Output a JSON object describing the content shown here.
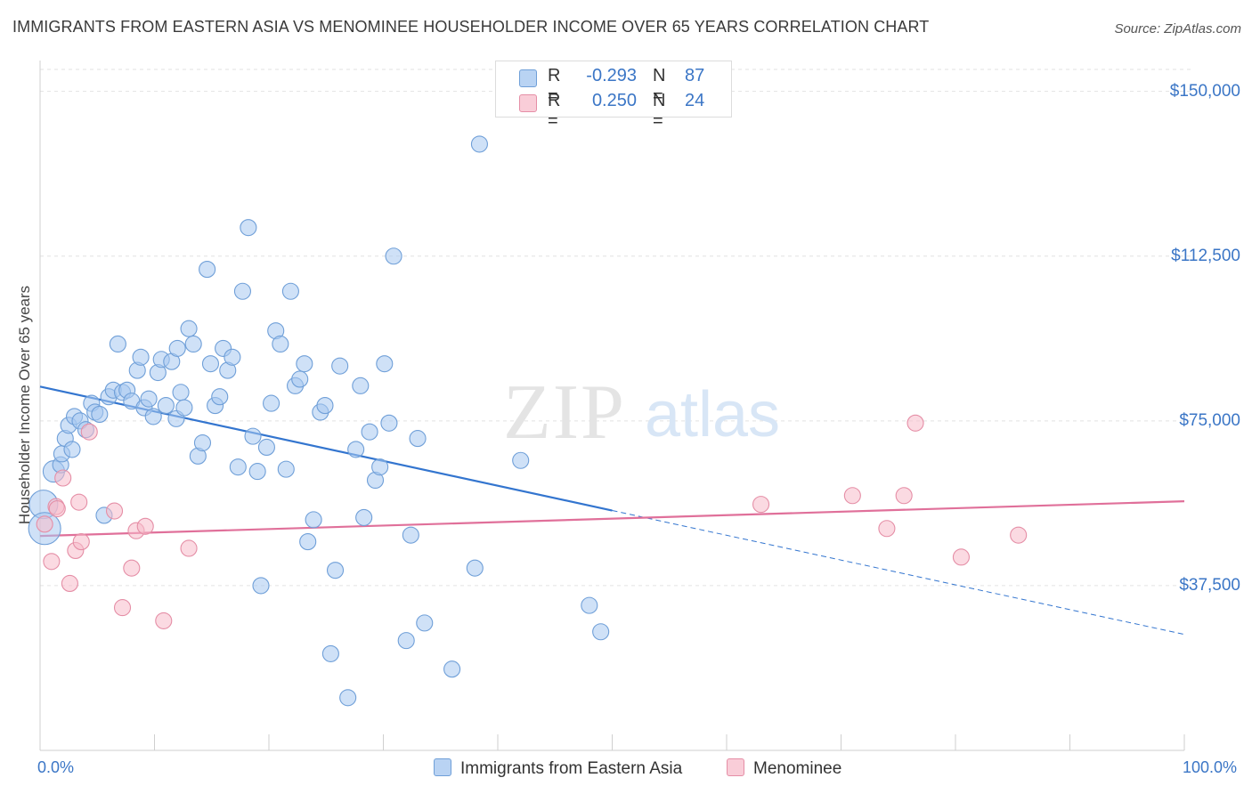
{
  "title": "IMMIGRANTS FROM EASTERN ASIA VS MENOMINEE HOUSEHOLDER INCOME OVER 65 YEARS CORRELATION CHART",
  "source": "Source: ZipAtlas.com",
  "watermark": {
    "zip": "ZIP",
    "atlas": "atlas"
  },
  "legend": {
    "series1": {
      "r_label": "R =",
      "r_value": "-0.293",
      "n_label": "N =",
      "n_value": "87"
    },
    "series2": {
      "r_label": "R =",
      "r_value": "0.250",
      "n_label": "N =",
      "n_value": "24"
    }
  },
  "colors": {
    "blue_fill": "#a8c8f0",
    "blue_stroke": "#6f9fd8",
    "blue_line": "#3375cf",
    "pink_fill": "#f7bccb",
    "pink_stroke": "#e58ea6",
    "pink_line": "#e0709a",
    "tick_text": "#3b76c6",
    "grid": "#e2e2e2"
  },
  "chart_data": {
    "type": "scatter",
    "ylabel": "Householder Income Over 65 years",
    "xlim": [
      0,
      100
    ],
    "ylim": [
      0,
      155000
    ],
    "x_tick_labels": [
      "0.0%",
      "100.0%"
    ],
    "y_ticks": [
      {
        "value": 150000,
        "label": "$150,000"
      },
      {
        "value": 112500,
        "label": "$112,500"
      },
      {
        "value": 75000,
        "label": "$75,000"
      },
      {
        "value": 37500,
        "label": "$37,500"
      }
    ],
    "grid": true,
    "series": [
      {
        "name": "Immigrants from Eastern Asia",
        "color": "blue",
        "trend": {
          "x": [
            0,
            50
          ],
          "y": [
            82800,
            54600
          ],
          "dashed_to": [
            100,
            26400
          ]
        },
        "points": [
          [
            0.3,
            56000,
            16
          ],
          [
            0.4,
            50500,
            18
          ],
          [
            1.2,
            63500,
            12
          ],
          [
            1.8,
            65000,
            9
          ],
          [
            1.9,
            67500,
            9
          ],
          [
            2.2,
            71000,
            9
          ],
          [
            2.5,
            74000,
            9
          ],
          [
            2.8,
            68500,
            9
          ],
          [
            3.0,
            76000,
            9
          ],
          [
            3.5,
            75000,
            9
          ],
          [
            4.0,
            73000,
            9
          ],
          [
            4.5,
            79000,
            9
          ],
          [
            4.8,
            77000,
            9
          ],
          [
            5.2,
            76500,
            9
          ],
          [
            5.6,
            53500,
            9
          ],
          [
            6.0,
            80500,
            9
          ],
          [
            6.4,
            82000,
            9
          ],
          [
            6.8,
            92500,
            9
          ],
          [
            7.2,
            81500,
            9
          ],
          [
            7.6,
            82000,
            9
          ],
          [
            8.0,
            79500,
            9
          ],
          [
            8.5,
            86500,
            9
          ],
          [
            8.8,
            89500,
            9
          ],
          [
            9.1,
            78000,
            9
          ],
          [
            9.5,
            80000,
            9
          ],
          [
            9.9,
            76000,
            9
          ],
          [
            10.3,
            86000,
            9
          ],
          [
            10.6,
            89000,
            9
          ],
          [
            11.0,
            78500,
            9
          ],
          [
            11.5,
            88500,
            9
          ],
          [
            11.9,
            75500,
            9
          ],
          [
            12.3,
            81500,
            9
          ],
          [
            12.6,
            78000,
            9
          ],
          [
            13.0,
            96000,
            9
          ],
          [
            13.4,
            92500,
            9
          ],
          [
            13.8,
            67000,
            9
          ],
          [
            14.2,
            70000,
            9
          ],
          [
            14.6,
            109500,
            9
          ],
          [
            14.9,
            88000,
            9
          ],
          [
            15.3,
            78500,
            9
          ],
          [
            15.7,
            80500,
            9
          ],
          [
            16.0,
            91500,
            9
          ],
          [
            16.4,
            86500,
            9
          ],
          [
            16.8,
            89500,
            9
          ],
          [
            17.3,
            64500,
            9
          ],
          [
            17.7,
            104500,
            9
          ],
          [
            18.2,
            119000,
            9
          ],
          [
            18.6,
            71500,
            9
          ],
          [
            19.0,
            63500,
            9
          ],
          [
            19.3,
            37500,
            9
          ],
          [
            19.8,
            69000,
            9
          ],
          [
            20.2,
            79000,
            9
          ],
          [
            20.6,
            95500,
            9
          ],
          [
            21.0,
            92500,
            9
          ],
          [
            21.5,
            64000,
            9
          ],
          [
            21.9,
            104500,
            9
          ],
          [
            22.3,
            83000,
            9
          ],
          [
            22.7,
            84500,
            9
          ],
          [
            23.1,
            88000,
            9
          ],
          [
            23.4,
            47500,
            9
          ],
          [
            23.9,
            52500,
            9
          ],
          [
            24.5,
            77000,
            9
          ],
          [
            24.9,
            78500,
            9
          ],
          [
            25.4,
            22000,
            9
          ],
          [
            25.8,
            41000,
            9
          ],
          [
            26.2,
            87500,
            9
          ],
          [
            26.9,
            12000,
            9
          ],
          [
            27.6,
            68500,
            9
          ],
          [
            28.0,
            83000,
            9
          ],
          [
            28.3,
            53000,
            9
          ],
          [
            28.8,
            72500,
            9
          ],
          [
            29.3,
            61500,
            9
          ],
          [
            29.7,
            64500,
            9
          ],
          [
            30.1,
            88000,
            9
          ],
          [
            30.5,
            74500,
            9
          ],
          [
            30.9,
            112500,
            9
          ],
          [
            32.0,
            25000,
            9
          ],
          [
            32.4,
            49000,
            9
          ],
          [
            33.0,
            71000,
            9
          ],
          [
            33.6,
            29000,
            9
          ],
          [
            36.0,
            18500,
            9
          ],
          [
            38.0,
            41500,
            9
          ],
          [
            38.4,
            138000,
            9
          ],
          [
            42.0,
            66000,
            9
          ],
          [
            48.0,
            33000,
            9
          ],
          [
            49.0,
            27000,
            9
          ],
          [
            12.0,
            91500,
            9
          ]
        ]
      },
      {
        "name": "Menominee",
        "color": "pink",
        "trend": {
          "x": [
            0,
            100
          ],
          "y": [
            48800,
            56700
          ]
        },
        "points": [
          [
            0.4,
            51500,
            9
          ],
          [
            1.0,
            43000,
            9
          ],
          [
            1.4,
            55500,
            9
          ],
          [
            2.0,
            62000,
            9
          ],
          [
            2.6,
            38000,
            9
          ],
          [
            3.1,
            45500,
            9
          ],
          [
            3.4,
            56500,
            9
          ],
          [
            3.6,
            47500,
            9
          ],
          [
            4.3,
            72500,
            9
          ],
          [
            6.5,
            54500,
            9
          ],
          [
            7.2,
            32500,
            9
          ],
          [
            8.0,
            41500,
            9
          ],
          [
            8.4,
            50000,
            9
          ],
          [
            9.2,
            51000,
            9
          ],
          [
            10.8,
            29500,
            9
          ],
          [
            13.0,
            46000,
            9
          ],
          [
            63.0,
            56000,
            9
          ],
          [
            71.0,
            58000,
            9
          ],
          [
            74.0,
            50500,
            9
          ],
          [
            75.5,
            58000,
            9
          ],
          [
            76.5,
            74500,
            9
          ],
          [
            80.5,
            44000,
            9
          ],
          [
            85.5,
            49000,
            9
          ],
          [
            1.5,
            55000,
            9
          ]
        ]
      }
    ]
  }
}
